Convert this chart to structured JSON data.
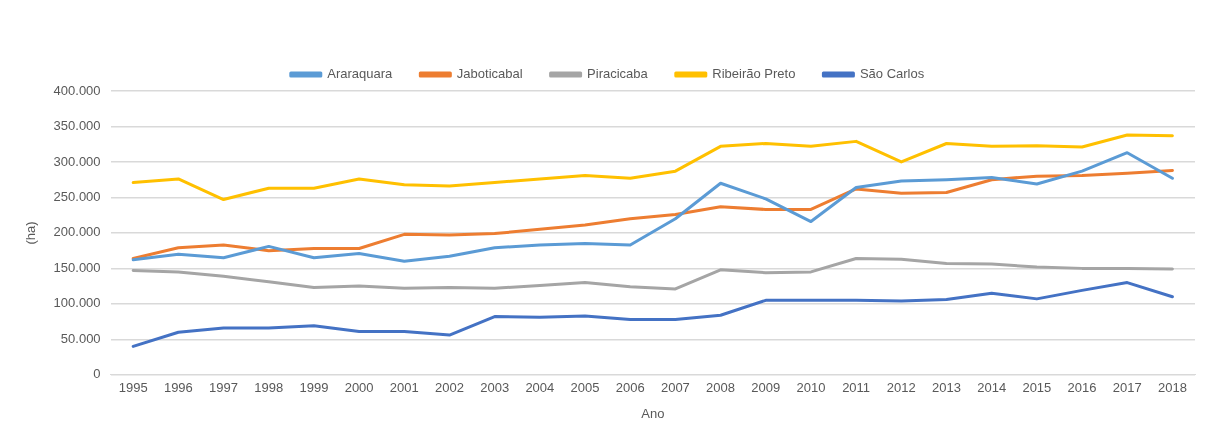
{
  "chart_data": {
    "type": "line",
    "xlabel": "Ano",
    "ylabel": "(ha)",
    "legend": "top",
    "grid": "y",
    "marker": "none",
    "line_style": "solid",
    "categories": [
      "1995",
      "1996",
      "1997",
      "1998",
      "1999",
      "2000",
      "2001",
      "2002",
      "2003",
      "2004",
      "2005",
      "2006",
      "2007",
      "2008",
      "2009",
      "2010",
      "2011",
      "2012",
      "2013",
      "2014",
      "2015",
      "2016",
      "2017",
      "2018"
    ],
    "ylim": [
      0,
      400000
    ],
    "yticks": [
      {
        "value": 0,
        "label": "0"
      },
      {
        "value": 50000,
        "label": "50.000"
      },
      {
        "value": 100000,
        "label": "100.000"
      },
      {
        "value": 150000,
        "label": "150.000"
      },
      {
        "value": 200000,
        "label": "200.000"
      },
      {
        "value": 250000,
        "label": "250.000"
      },
      {
        "value": 300000,
        "label": "300.000"
      },
      {
        "value": 350000,
        "label": "350.000"
      },
      {
        "value": 400000,
        "label": "400.000"
      }
    ],
    "series": [
      {
        "name": "Araraquara",
        "color": "#5b9bd5",
        "values": [
          162000,
          170000,
          165000,
          181000,
          165000,
          171000,
          160000,
          167000,
          179000,
          183000,
          185000,
          183000,
          220000,
          270000,
          248000,
          216000,
          264000,
          273000,
          275000,
          278000,
          269000,
          287000,
          313000,
          277000
        ]
      },
      {
        "name": "Jaboticabal",
        "color": "#ed7d31",
        "values": [
          164000,
          179000,
          183000,
          175000,
          178000,
          178000,
          198000,
          197000,
          199000,
          205000,
          211000,
          220000,
          226000,
          237000,
          233000,
          233000,
          262000,
          256000,
          257000,
          275000,
          280000,
          281000,
          284000,
          288000
        ]
      },
      {
        "name": "Piracicaba",
        "color": "#a5a5a5",
        "values": [
          147000,
          145000,
          139000,
          131000,
          123000,
          125000,
          122000,
          123000,
          122000,
          126000,
          130000,
          124000,
          121000,
          148000,
          144000,
          145000,
          164000,
          163000,
          157000,
          156000,
          152000,
          150000,
          150000,
          149000
        ]
      },
      {
        "name": "Ribeirão Preto",
        "color": "#ffc000",
        "values": [
          271000,
          276000,
          247000,
          263000,
          263000,
          276000,
          268000,
          266000,
          271000,
          276000,
          281000,
          277000,
          287000,
          322000,
          326000,
          322000,
          329000,
          300000,
          326000,
          322000,
          323000,
          321000,
          338000,
          337000
        ]
      },
      {
        "name": "São Carlos",
        "color": "#4472c4",
        "values": [
          40000,
          60000,
          66000,
          66000,
          69000,
          61000,
          61000,
          56000,
          82000,
          81000,
          83000,
          78000,
          78000,
          84000,
          105000,
          105000,
          105000,
          104000,
          106000,
          115000,
          107000,
          119000,
          130000,
          110000
        ]
      }
    ]
  }
}
